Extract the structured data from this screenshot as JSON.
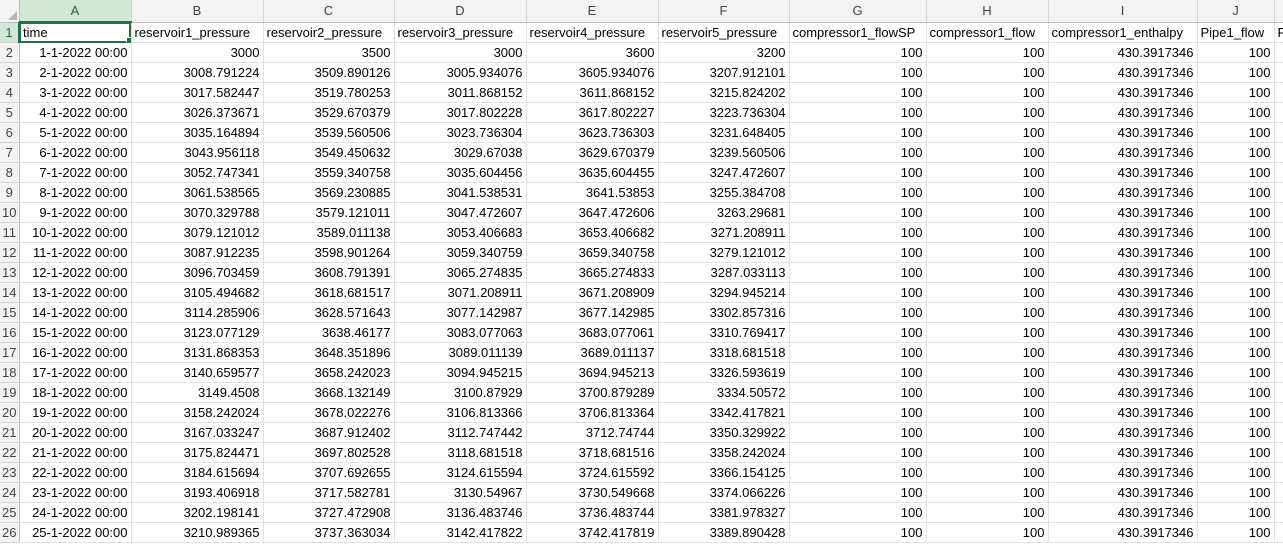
{
  "columns": [
    "A",
    "B",
    "C",
    "D",
    "E",
    "F",
    "G",
    "H",
    "I",
    "J",
    ""
  ],
  "selected_column": "A",
  "selected_row": "1",
  "headers": [
    "time",
    "reservoir1_pressure",
    "reservoir2_pressure",
    "reservoir3_pressure",
    "reservoir4_pressure",
    "reservoir5_pressure",
    "compressor1_flowSP",
    "compressor1_flow",
    "compressor1_enthalpy",
    "Pipe1_flow",
    "P"
  ],
  "rows": [
    [
      "2",
      "1-1-2022 00:00",
      "3000",
      "3500",
      "3000",
      "3600",
      "3200",
      "100",
      "100",
      "430.3917346",
      "100",
      ""
    ],
    [
      "3",
      "2-1-2022 00:00",
      "3008.791224",
      "3509.890126",
      "3005.934076",
      "3605.934076",
      "3207.912101",
      "100",
      "100",
      "430.3917346",
      "100",
      ""
    ],
    [
      "4",
      "3-1-2022 00:00",
      "3017.582447",
      "3519.780253",
      "3011.868152",
      "3611.868152",
      "3215.824202",
      "100",
      "100",
      "430.3917346",
      "100",
      ""
    ],
    [
      "5",
      "4-1-2022 00:00",
      "3026.373671",
      "3529.670379",
      "3017.802228",
      "3617.802227",
      "3223.736304",
      "100",
      "100",
      "430.3917346",
      "100",
      ""
    ],
    [
      "6",
      "5-1-2022 00:00",
      "3035.164894",
      "3539.560506",
      "3023.736304",
      "3623.736303",
      "3231.648405",
      "100",
      "100",
      "430.3917346",
      "100",
      ""
    ],
    [
      "7",
      "6-1-2022 00:00",
      "3043.956118",
      "3549.450632",
      "3029.67038",
      "3629.670379",
      "3239.560506",
      "100",
      "100",
      "430.3917346",
      "100",
      ""
    ],
    [
      "8",
      "7-1-2022 00:00",
      "3052.747341",
      "3559.340758",
      "3035.604456",
      "3635.604455",
      "3247.472607",
      "100",
      "100",
      "430.3917346",
      "100",
      ""
    ],
    [
      "9",
      "8-1-2022 00:00",
      "3061.538565",
      "3569.230885",
      "3041.538531",
      "3641.53853",
      "3255.384708",
      "100",
      "100",
      "430.3917346",
      "100",
      ""
    ],
    [
      "10",
      "9-1-2022 00:00",
      "3070.329788",
      "3579.121011",
      "3047.472607",
      "3647.472606",
      "3263.29681",
      "100",
      "100",
      "430.3917346",
      "100",
      ""
    ],
    [
      "11",
      "10-1-2022 00:00",
      "3079.121012",
      "3589.011138",
      "3053.406683",
      "3653.406682",
      "3271.208911",
      "100",
      "100",
      "430.3917346",
      "100",
      ""
    ],
    [
      "12",
      "11-1-2022 00:00",
      "3087.912235",
      "3598.901264",
      "3059.340759",
      "3659.340758",
      "3279.121012",
      "100",
      "100",
      "430.3917346",
      "100",
      ""
    ],
    [
      "13",
      "12-1-2022 00:00",
      "3096.703459",
      "3608.791391",
      "3065.274835",
      "3665.274833",
      "3287.033113",
      "100",
      "100",
      "430.3917346",
      "100",
      ""
    ],
    [
      "14",
      "13-1-2022 00:00",
      "3105.494682",
      "3618.681517",
      "3071.208911",
      "3671.208909",
      "3294.945214",
      "100",
      "100",
      "430.3917346",
      "100",
      ""
    ],
    [
      "15",
      "14-1-2022 00:00",
      "3114.285906",
      "3628.571643",
      "3077.142987",
      "3677.142985",
      "3302.857316",
      "100",
      "100",
      "430.3917346",
      "100",
      ""
    ],
    [
      "16",
      "15-1-2022 00:00",
      "3123.077129",
      "3638.46177",
      "3083.077063",
      "3683.077061",
      "3310.769417",
      "100",
      "100",
      "430.3917346",
      "100",
      ""
    ],
    [
      "17",
      "16-1-2022 00:00",
      "3131.868353",
      "3648.351896",
      "3089.011139",
      "3689.011137",
      "3318.681518",
      "100",
      "100",
      "430.3917346",
      "100",
      ""
    ],
    [
      "18",
      "17-1-2022 00:00",
      "3140.659577",
      "3658.242023",
      "3094.945215",
      "3694.945213",
      "3326.593619",
      "100",
      "100",
      "430.3917346",
      "100",
      ""
    ],
    [
      "19",
      "18-1-2022 00:00",
      "3149.4508",
      "3668.132149",
      "3100.87929",
      "3700.879289",
      "3334.50572",
      "100",
      "100",
      "430.3917346",
      "100",
      ""
    ],
    [
      "20",
      "19-1-2022 00:00",
      "3158.242024",
      "3678.022276",
      "3106.813366",
      "3706.813364",
      "3342.417821",
      "100",
      "100",
      "430.3917346",
      "100",
      ""
    ],
    [
      "21",
      "20-1-2022 00:00",
      "3167.033247",
      "3687.912402",
      "3112.747442",
      "3712.74744",
      "3350.329922",
      "100",
      "100",
      "430.3917346",
      "100",
      ""
    ],
    [
      "22",
      "21-1-2022 00:00",
      "3175.824471",
      "3697.802528",
      "3118.681518",
      "3718.681516",
      "3358.242024",
      "100",
      "100",
      "430.3917346",
      "100",
      ""
    ],
    [
      "23",
      "22-1-2022 00:00",
      "3184.615694",
      "3707.692655",
      "3124.615594",
      "3724.615592",
      "3366.154125",
      "100",
      "100",
      "430.3917346",
      "100",
      ""
    ],
    [
      "24",
      "23-1-2022 00:00",
      "3193.406918",
      "3717.582781",
      "3130.54967",
      "3730.549668",
      "3374.066226",
      "100",
      "100",
      "430.3917346",
      "100",
      ""
    ],
    [
      "25",
      "24-1-2022 00:00",
      "3202.198141",
      "3727.472908",
      "3136.483746",
      "3736.483744",
      "3381.978327",
      "100",
      "100",
      "430.3917346",
      "100",
      ""
    ],
    [
      "26",
      "25-1-2022 00:00",
      "3210.989365",
      "3737.363034",
      "3142.417822",
      "3742.417819",
      "3389.890428",
      "100",
      "100",
      "430.3917346",
      "100",
      ""
    ]
  ]
}
